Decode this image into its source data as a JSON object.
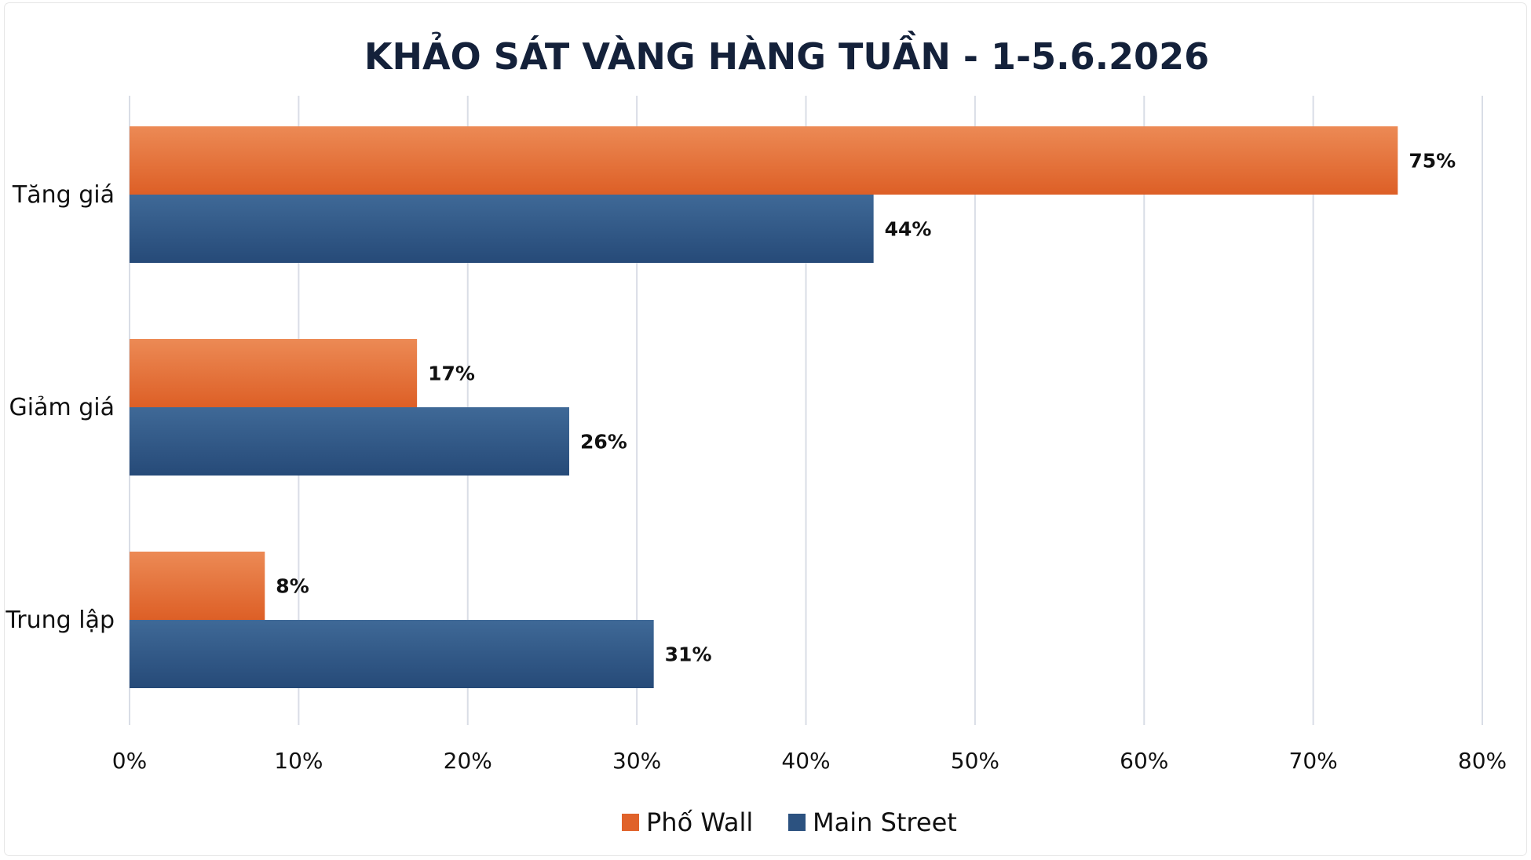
{
  "chart_data": {
    "type": "bar",
    "orientation": "horizontal",
    "title": "KHẢO SÁT VÀNG HÀNG TUẦN - 1-5.6.2026",
    "categories": [
      "Tăng giá",
      "Giảm giá",
      "Trung lập"
    ],
    "series": [
      {
        "name": "Phố Wall",
        "color": "#e0622a",
        "values": [
          75,
          17,
          8
        ],
        "labels": [
          "75%",
          "17%",
          "8%"
        ]
      },
      {
        "name": "Main Street",
        "color": "#2c5280",
        "values": [
          44,
          26,
          31
        ],
        "labels": [
          "44%",
          "26%",
          "31%"
        ]
      }
    ],
    "xlim": [
      0,
      80
    ],
    "x_ticks": [
      "0%",
      "10%",
      "20%",
      "30%",
      "40%",
      "50%",
      "60%",
      "70%",
      "80%"
    ],
    "xlabel": "",
    "ylabel": "",
    "grid": "vertical",
    "legend_position": "bottom-center"
  }
}
